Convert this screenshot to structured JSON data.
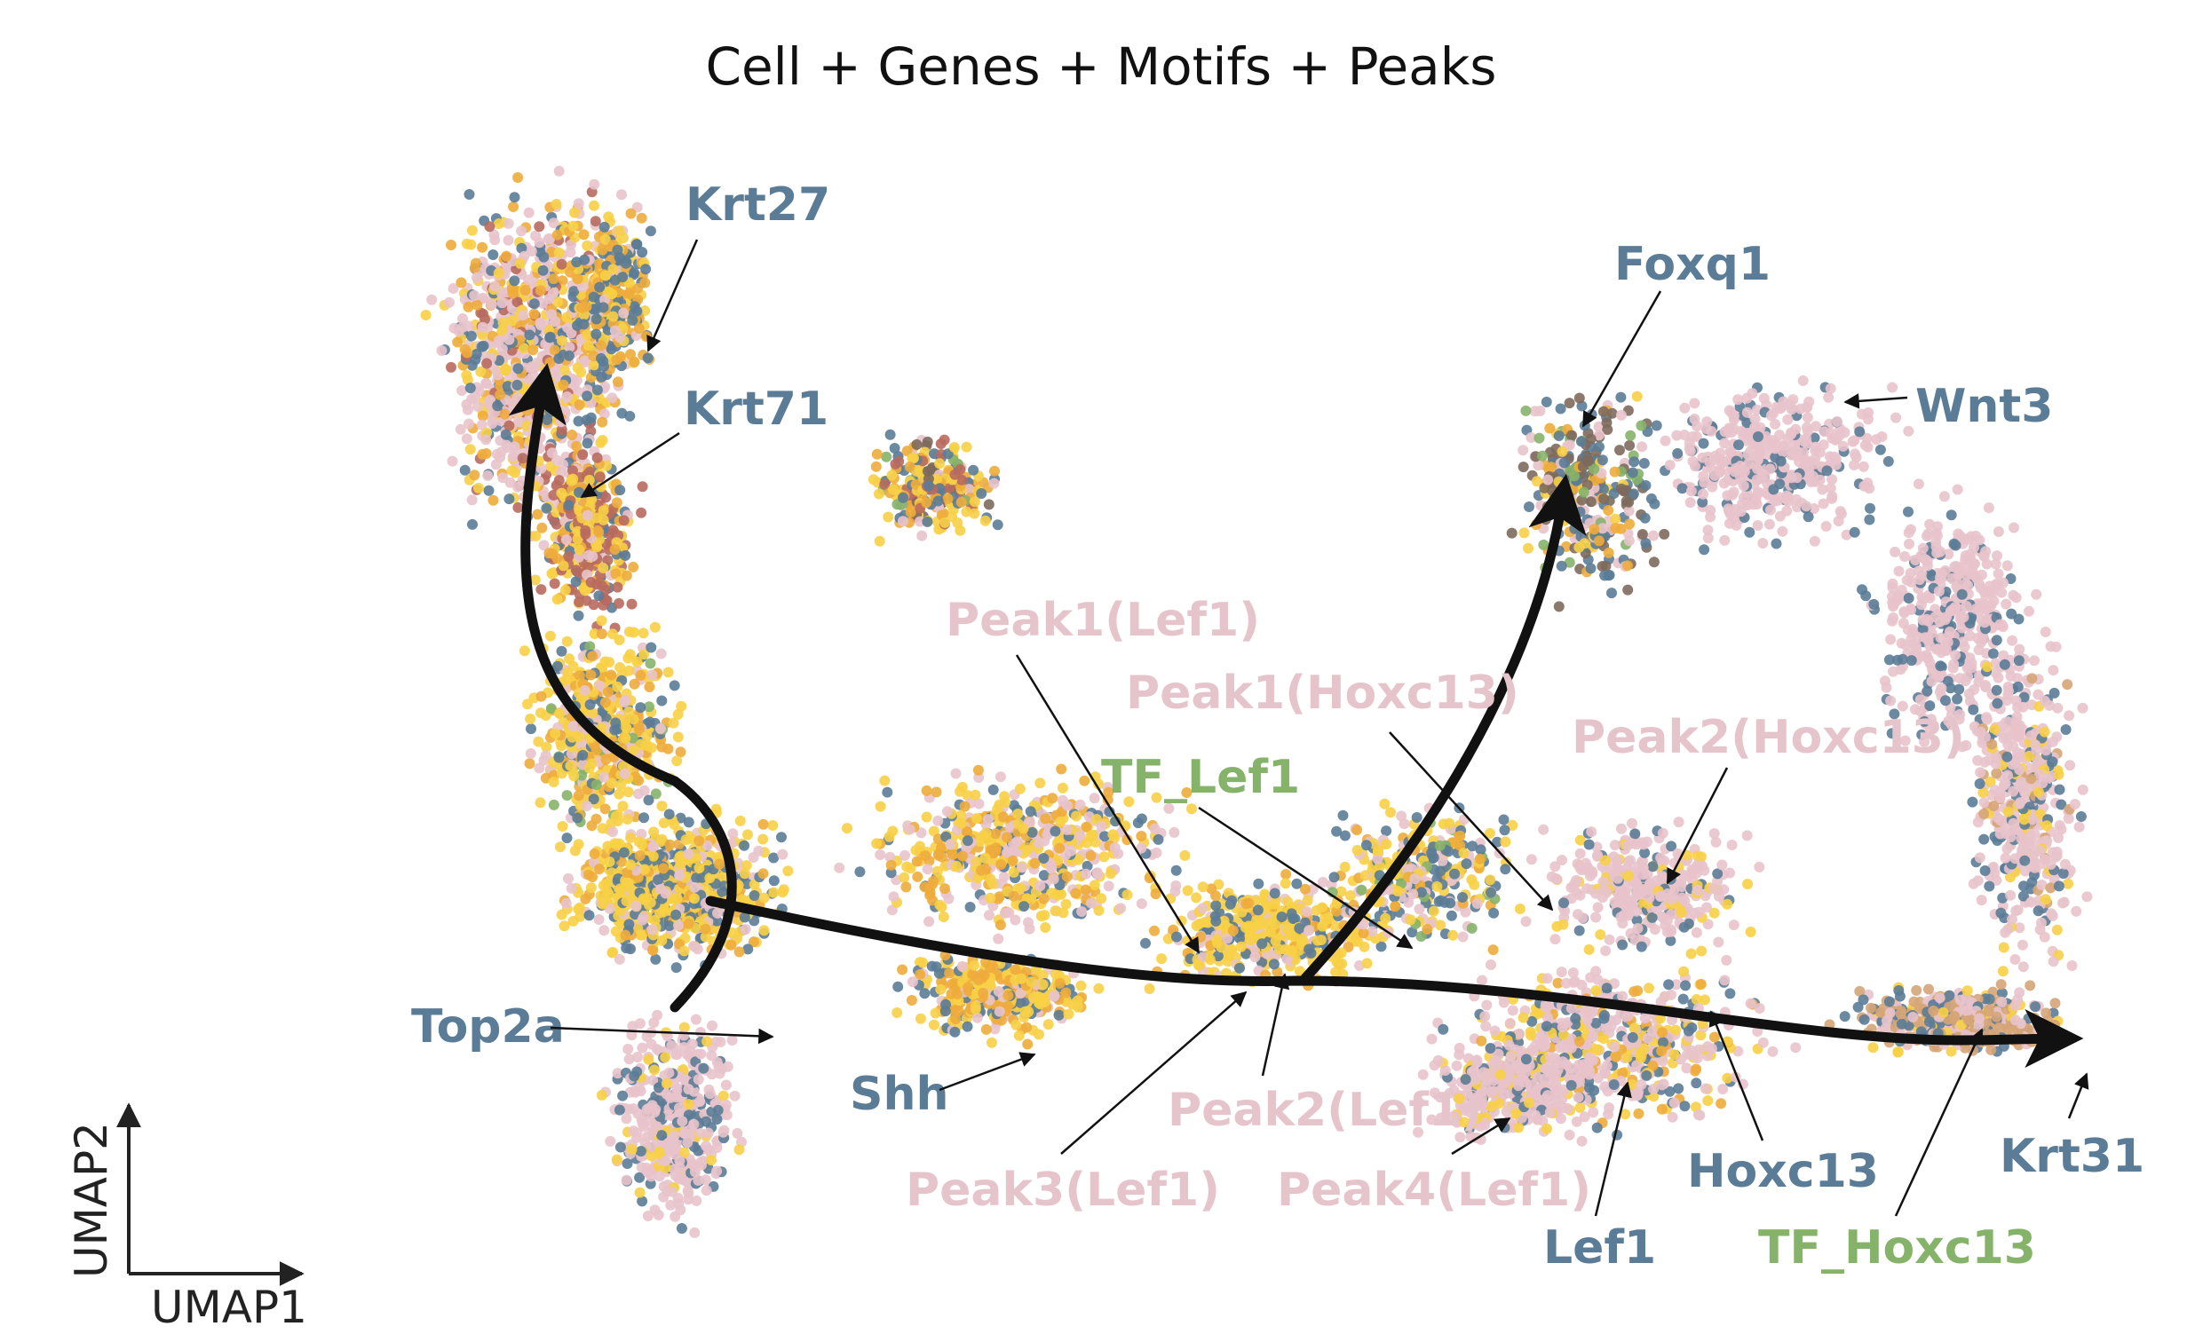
{
  "title": "Cell + Genes + Motifs + Peaks",
  "axes": {
    "x_label": "UMAP1",
    "y_label": "UMAP2"
  },
  "colors": {
    "gene": "#5b7c96",
    "motif": "#86b36a",
    "peak": "#e6c4cc",
    "trajectory": "#111111"
  },
  "chart_data": {
    "type": "scatter",
    "title": "Cell + Genes + Motifs + Peaks",
    "xlabel": "UMAP1",
    "ylabel": "UMAP2",
    "grid": false,
    "legend": "none",
    "series": [
      {
        "name": "",
        "color": "#e8c3cb"
      },
      {
        "name": "",
        "color": "#f7d046"
      },
      {
        "name": "",
        "color": "#eeac3c"
      },
      {
        "name": "",
        "color": "#5b7c96"
      },
      {
        "name": "",
        "color": "#b86a5e"
      },
      {
        "name": "",
        "color": "#86b36a"
      },
      {
        "name": "",
        "color": "#7d6a5c"
      },
      {
        "name": "",
        "color": "#d6a577"
      }
    ],
    "annotations": [
      {
        "text": "Krt27",
        "category": "gene"
      },
      {
        "text": "Krt71",
        "category": "gene"
      },
      {
        "text": "Foxq1",
        "category": "gene"
      },
      {
        "text": "Wnt3",
        "category": "gene"
      },
      {
        "text": "Peak1(Lef1)",
        "category": "peak"
      },
      {
        "text": "Peak1(Hoxc13)",
        "category": "peak"
      },
      {
        "text": "TF_Lef1",
        "category": "motif"
      },
      {
        "text": "Peak2(Hoxc13)",
        "category": "peak"
      },
      {
        "text": "Top2a",
        "category": "gene"
      },
      {
        "text": "Shh",
        "category": "gene"
      },
      {
        "text": "Peak2(Lef1)",
        "category": "peak"
      },
      {
        "text": "Peak3(Lef1)",
        "category": "peak"
      },
      {
        "text": "Peak4(Lef1)",
        "category": "peak"
      },
      {
        "text": "Hoxc13",
        "category": "gene"
      },
      {
        "text": "Lef1",
        "category": "gene"
      },
      {
        "text": "TF_Hoxc13",
        "category": "motif"
      },
      {
        "text": "Krt31",
        "category": "gene"
      }
    ]
  }
}
